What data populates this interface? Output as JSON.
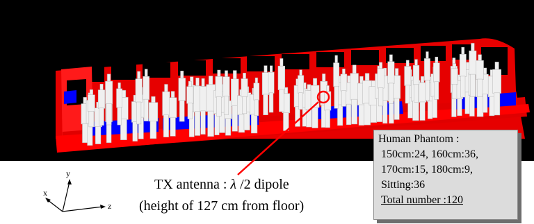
{
  "tx_note": {
    "line1_prefix": "TX antenna : ",
    "lambda": "λ",
    "line1_suffix": " /2 dipole",
    "line2": "(height of 127 cm from floor)"
  },
  "phantom_box": {
    "title": "Human Phantom :",
    "rows": [
      "150cm:24, 160cm:36,",
      "170cm:15, 180cm:9,",
      "Sitting:36"
    ],
    "total": "Total number :120"
  },
  "axes": {
    "x": "x",
    "y": "y",
    "z": "z"
  },
  "colors": {
    "background": "#000000",
    "car_body": "#ff0000",
    "seats": "#0000ff",
    "phantoms": "#f2f2f2",
    "pointer": "#ff0000"
  }
}
